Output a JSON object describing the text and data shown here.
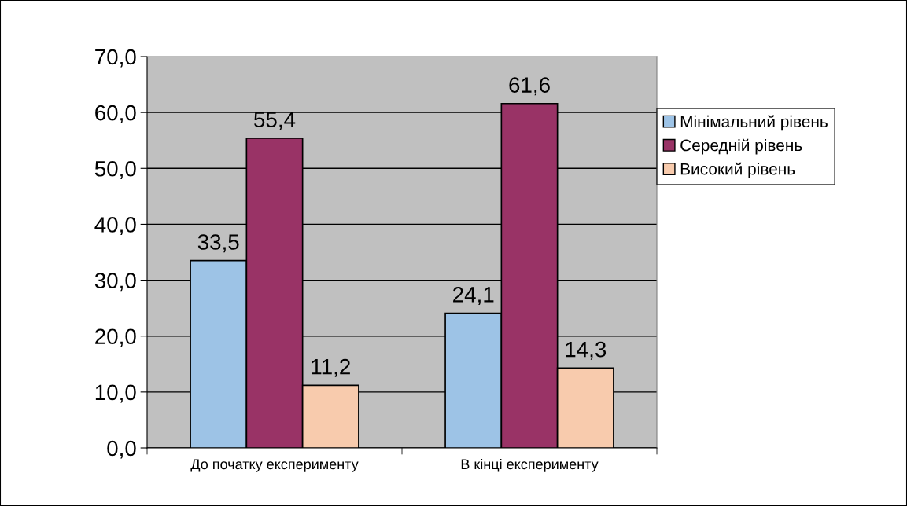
{
  "chart_data": {
    "type": "bar",
    "categories": [
      "До початку експерименту",
      "В кінці експерименту"
    ],
    "series": [
      {
        "name": "Мінімальний рівень",
        "color": "#9dc3e6",
        "values": [
          33.5,
          24.1
        ],
        "value_labels": [
          "33,5",
          "24,1"
        ]
      },
      {
        "name": "Середній рівень",
        "color": "#993366",
        "values": [
          55.4,
          61.6
        ],
        "value_labels": [
          "55,4",
          "61,6"
        ]
      },
      {
        "name": "Високий рівень",
        "color": "#f8cbad",
        "values": [
          11.2,
          14.3
        ],
        "value_labels": [
          "11,2",
          "14,3"
        ]
      }
    ],
    "ylim": [
      0,
      70
    ],
    "yticks": [
      {
        "value": 0,
        "label": "0,0"
      },
      {
        "value": 10,
        "label": "10,0"
      },
      {
        "value": 20,
        "label": "20,0"
      },
      {
        "value": 30,
        "label": "30,0"
      },
      {
        "value": 40,
        "label": "40,0"
      },
      {
        "value": 50,
        "label": "50,0"
      },
      {
        "value": 60,
        "label": "60,0"
      },
      {
        "value": 70,
        "label": "70,0"
      }
    ],
    "grid": "y",
    "legend": "right"
  }
}
